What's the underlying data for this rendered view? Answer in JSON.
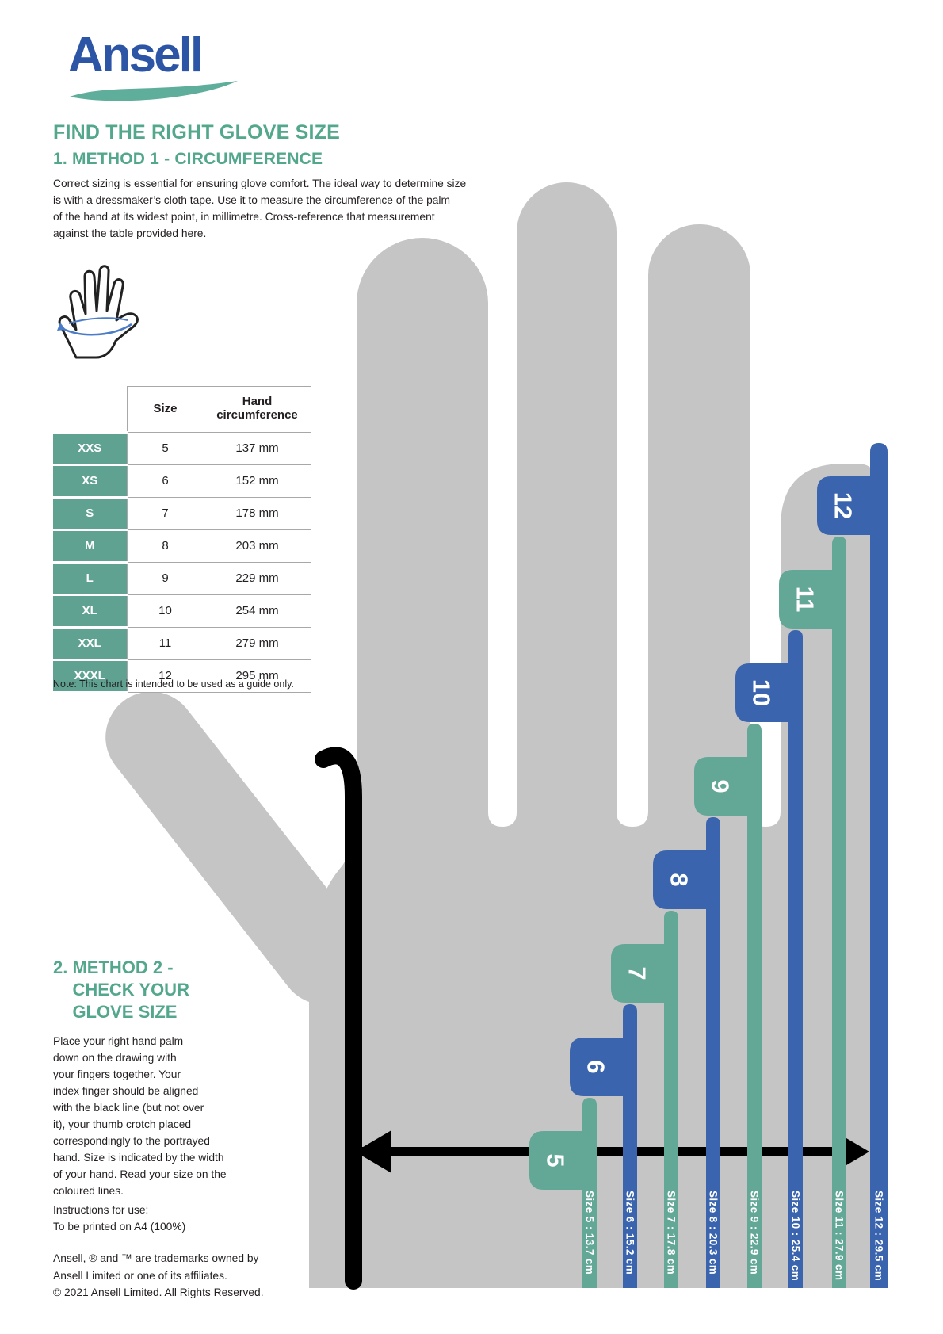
{
  "document": {
    "title": "Ansell – Find the right glove size"
  },
  "colors": {
    "logo_blue": "#2d55a5",
    "swoosh_teal": "#5fae9c",
    "heading_teal": "#53a78c",
    "table_teal": "#5fa292",
    "bar_teal": "#63a797",
    "bar_blue": "#3a64ad",
    "hand_gray": "#c5c5c6",
    "text": "#231f20"
  },
  "logo": {
    "wordmark": "Ansell"
  },
  "headings": {
    "title": "FIND THE RIGHT GLOVE SIZE",
    "method1": "1. METHOD 1 - CIRCUMFERENCE",
    "method2_lines": [
      "2. METHOD 2 -",
      "    CHECK YOUR",
      "    GLOVE SIZE"
    ]
  },
  "intro_lines": [
    "Correct sizing is essential for ensuring glove comfort. The ideal way to determine size",
    "is with a dressmaker’s cloth tape. Use it to measure the circumference of the palm",
    "of the hand at its widest point, in millimetre. Cross-reference that measurement",
    "against the table provided here."
  ],
  "size_table": {
    "col_headers": [
      "",
      "Size",
      "Hand circumference"
    ],
    "rows": [
      [
        "XXS",
        "5",
        "137 mm"
      ],
      [
        "XS",
        "6",
        "152 mm"
      ],
      [
        "S",
        "7",
        "178 mm"
      ],
      [
        "M",
        "8",
        "203 mm"
      ],
      [
        "L",
        "9",
        "229 mm"
      ],
      [
        "XL",
        "10",
        "254 mm"
      ],
      [
        "XXL",
        "11",
        "279 mm"
      ],
      [
        "XXXL",
        "12",
        "295 mm"
      ]
    ],
    "note": "Note: This chart is intended to be used as a guide only."
  },
  "method2_lines": [
    "Place your right hand palm",
    "down on the drawing with",
    "your fingers together. Your",
    "index finger should be aligned",
    "with the black line (but not over",
    "it), your thumb crotch placed",
    "correspondingly to the portrayed",
    "hand. Size is indicated by the width",
    "of your hand. Read your size on the",
    "coloured lines."
  ],
  "instructions_lines": [
    "Instructions for use:",
    "To be printed on A4 (100%)"
  ],
  "legal_lines": [
    "Ansell, ® and ™ are trademarks owned by",
    "Ansell Limited or one of its affiliates.",
    "© 2021 Ansell Limited. All Rights Reserved."
  ],
  "ruler": {
    "sizes": [
      {
        "size": "5",
        "label": "Size 5 : 13.7 cm",
        "color_key": "bar_teal"
      },
      {
        "size": "6",
        "label": "Size 6 : 15.2 cm",
        "color_key": "bar_blue"
      },
      {
        "size": "7",
        "label": "Size 7 : 17.8 cm",
        "color_key": "bar_teal"
      },
      {
        "size": "8",
        "label": "Size 8 : 20.3 cm",
        "color_key": "bar_blue"
      },
      {
        "size": "9",
        "label": "Size 9 : 22.9 cm",
        "color_key": "bar_teal"
      },
      {
        "size": "10",
        "label": "Size 10 : 25.4 cm",
        "color_key": "bar_blue"
      },
      {
        "size": "11",
        "label": "Size 11 : 27.9 cm",
        "color_key": "bar_teal"
      },
      {
        "size": "12",
        "label": "Size 12 : 29.5 cm",
        "color_key": "bar_blue"
      }
    ]
  }
}
